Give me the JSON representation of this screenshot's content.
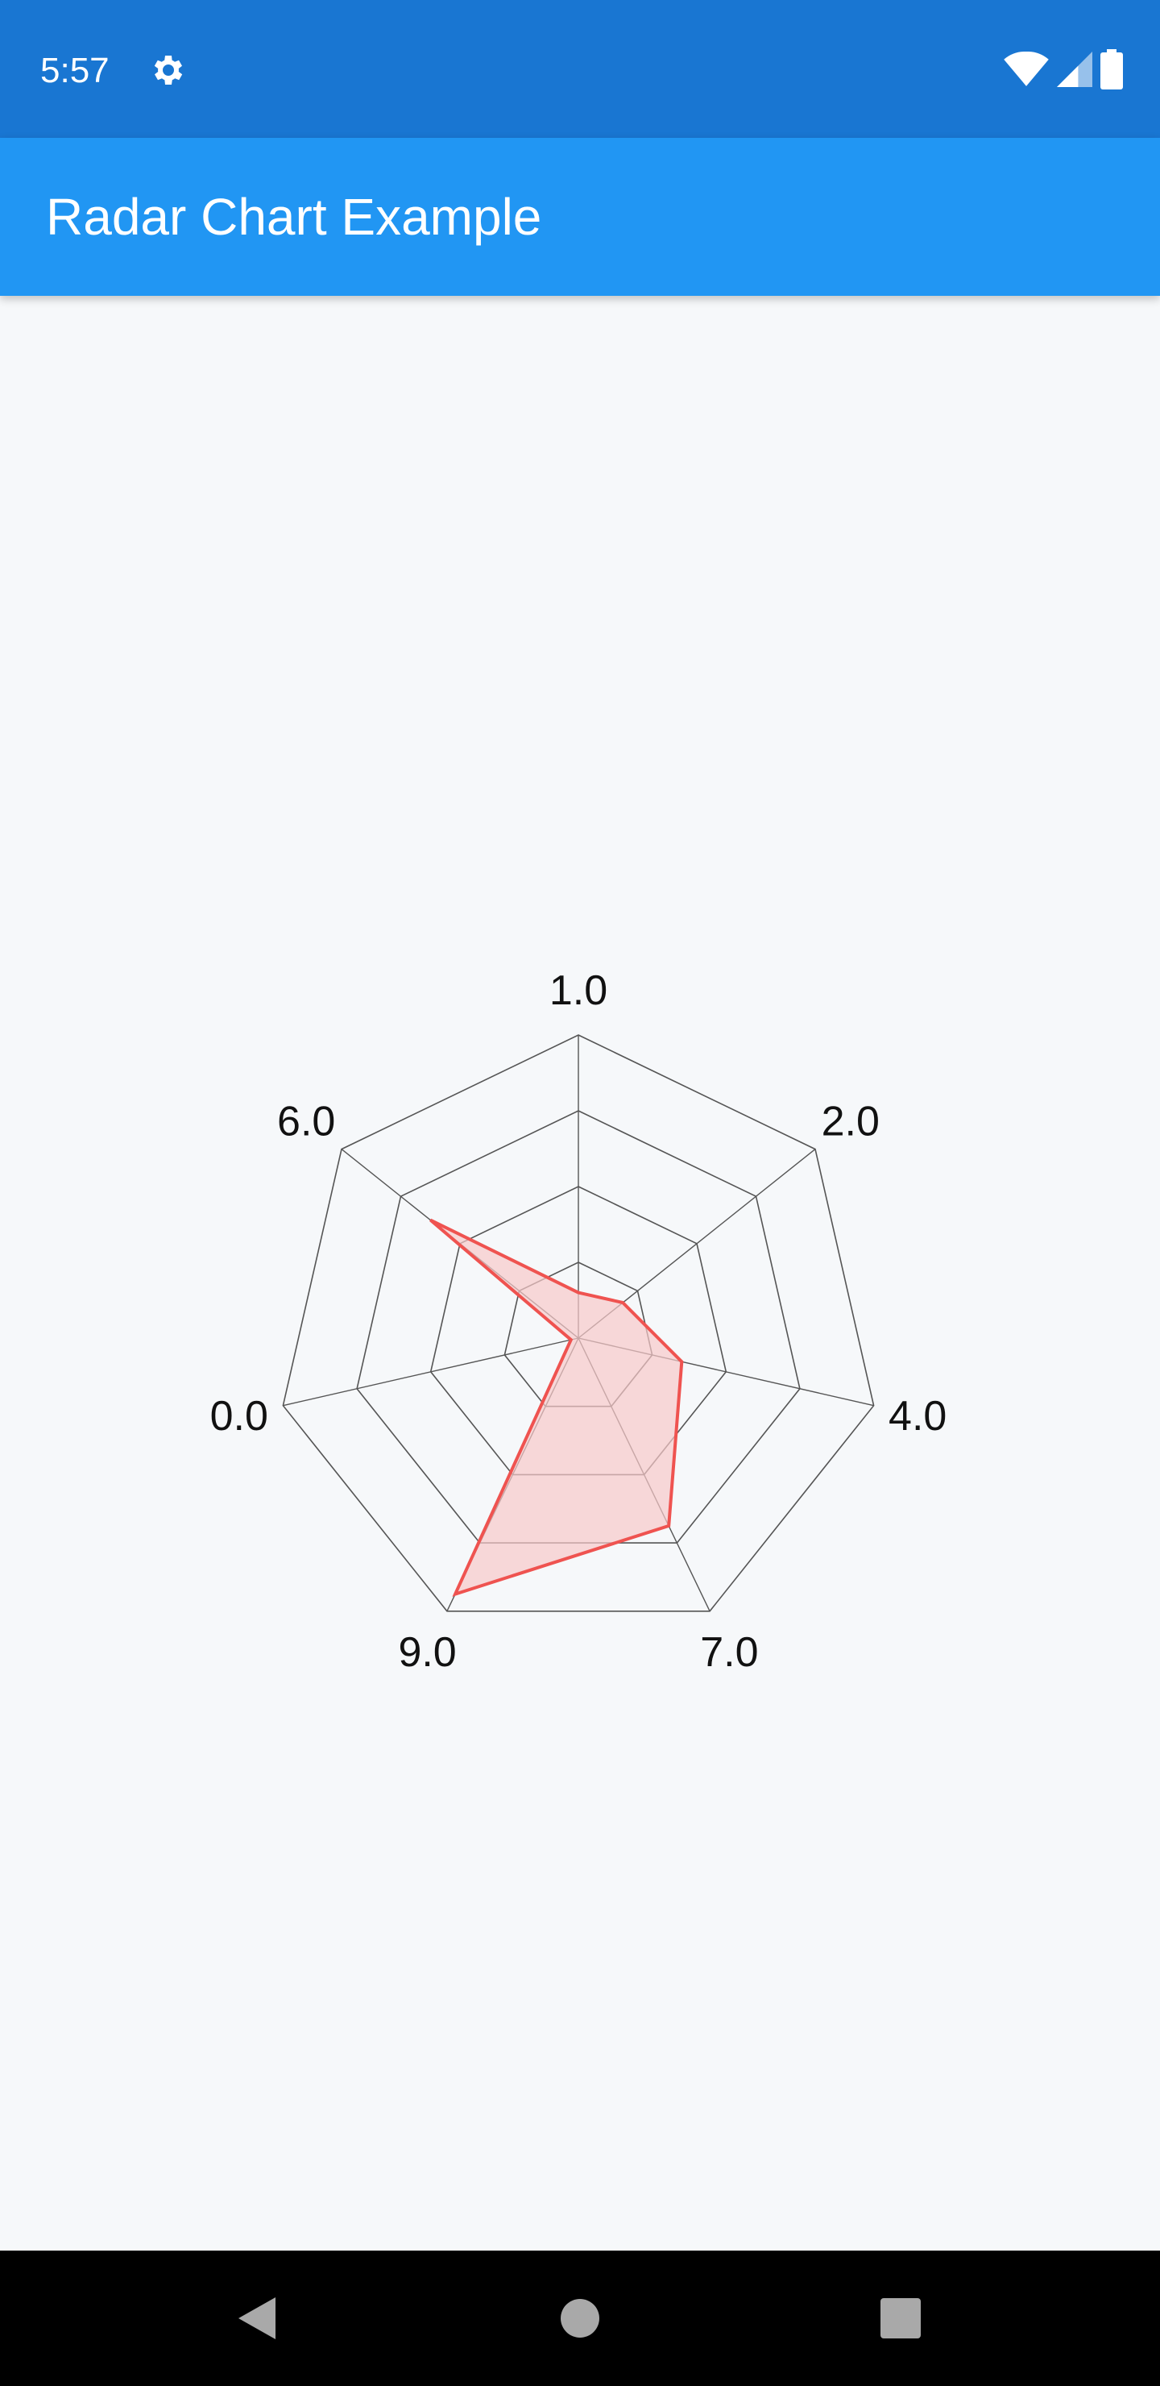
{
  "status_bar": {
    "time": "5:57",
    "icons": [
      "gear-icon",
      "wifi-icon",
      "cell-signal-icon",
      "battery-icon"
    ]
  },
  "app_bar": {
    "title": "Radar Chart Example",
    "color": "#2196f3"
  },
  "colors": {
    "status_bar": "#1976d2",
    "series_stroke": "#ef5350",
    "series_fill": "#f8c9c9",
    "grid": "#555555"
  },
  "chart_data": {
    "type": "radar",
    "categories": [
      "1.0",
      "2.0",
      "4.0",
      "7.0",
      "9.0",
      "0.0",
      "6.0"
    ],
    "series": [
      {
        "values": [
          1.2,
          1.5,
          2.8,
          5.5,
          7.5,
          0.2,
          5.0
        ]
      }
    ],
    "rlim": [
      0,
      8
    ],
    "rings": 4
  },
  "nav_bar": {
    "buttons": [
      "back-icon",
      "home-icon",
      "recents-icon"
    ]
  }
}
